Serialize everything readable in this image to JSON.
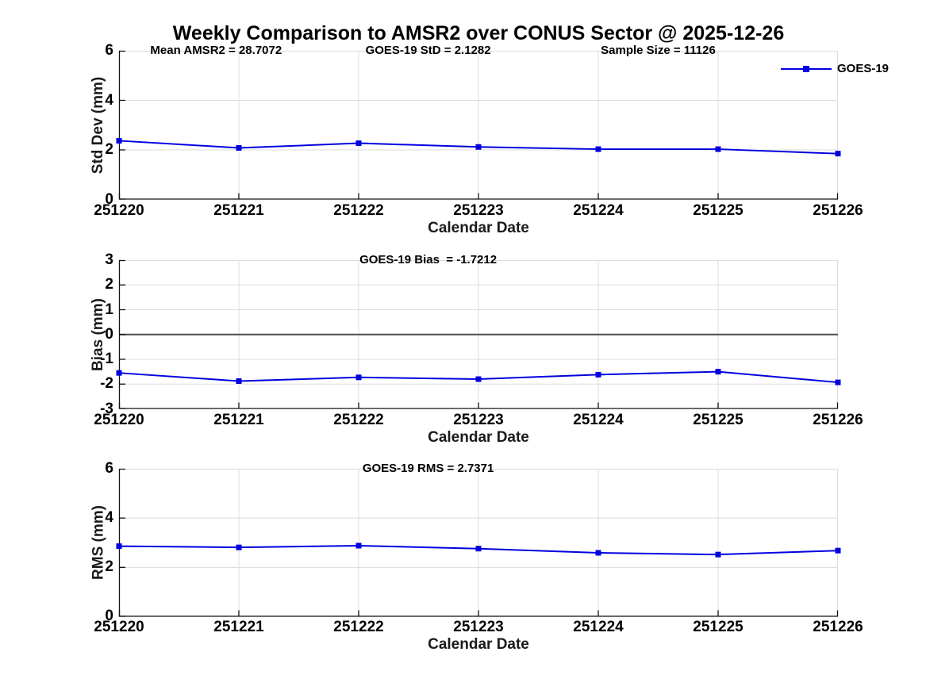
{
  "title": "Weekly Comparison to AMSR2 over CONUS Sector @ 2025-12-26",
  "legend": {
    "label": "GOES-19"
  },
  "colors": {
    "series": "#0000e0",
    "grid": "#dcdcdc",
    "spine": "#111111",
    "zero_line": "#4d4d4d",
    "text": "#000000"
  },
  "chart_data": [
    {
      "type": "line",
      "name": "stddev",
      "ylabel": "Std Dev (mm)",
      "xlabel": "Calendar Date",
      "ylim": [
        0,
        6
      ],
      "yticks": [
        0,
        2,
        4,
        6
      ],
      "grid": true,
      "zero_line": false,
      "categories": [
        "251220",
        "251221",
        "251222",
        "251223",
        "251224",
        "251225",
        "251226"
      ],
      "series": [
        {
          "name": "GOES-19",
          "values": [
            2.37,
            2.08,
            2.27,
            2.12,
            2.03,
            2.03,
            1.85
          ]
        }
      ],
      "annotations": [
        {
          "text": "Mean AMSR2 = 28.7072",
          "xfrac": 0.135
        },
        {
          "text": "GOES-19 StD = 2.1282",
          "xfrac": 0.43
        },
        {
          "text": "Sample Size = 11126",
          "xfrac": 0.75
        }
      ],
      "legend_visible": true,
      "legend_position": "northeast"
    },
    {
      "type": "line",
      "name": "bias",
      "ylabel": "Bias (mm)",
      "xlabel": "Calendar Date",
      "ylim": [
        -3,
        3
      ],
      "yticks": [
        -3,
        -2,
        -1,
        0,
        1,
        2,
        3
      ],
      "grid": true,
      "zero_line": true,
      "categories": [
        "251220",
        "251221",
        "251222",
        "251223",
        "251224",
        "251225",
        "251226"
      ],
      "series": [
        {
          "name": "GOES-19",
          "values": [
            -1.55,
            -1.88,
            -1.73,
            -1.8,
            -1.62,
            -1.5,
            -1.93
          ]
        }
      ],
      "annotations": [
        {
          "text": "GOES-19 Bias  = -1.7212",
          "xfrac": 0.43
        }
      ],
      "legend_visible": false
    },
    {
      "type": "line",
      "name": "rms",
      "ylabel": "RMS (mm)",
      "xlabel": "Calendar Date",
      "ylim": [
        0,
        6
      ],
      "yticks": [
        0,
        2,
        4,
        6
      ],
      "grid": true,
      "zero_line": false,
      "categories": [
        "251220",
        "251221",
        "251222",
        "251223",
        "251224",
        "251225",
        "251226"
      ],
      "series": [
        {
          "name": "GOES-19",
          "values": [
            2.86,
            2.81,
            2.88,
            2.76,
            2.59,
            2.52,
            2.68
          ]
        }
      ],
      "annotations": [
        {
          "text": "GOES-19 RMS = 2.7371",
          "xfrac": 0.43
        }
      ],
      "legend_visible": false
    }
  ]
}
